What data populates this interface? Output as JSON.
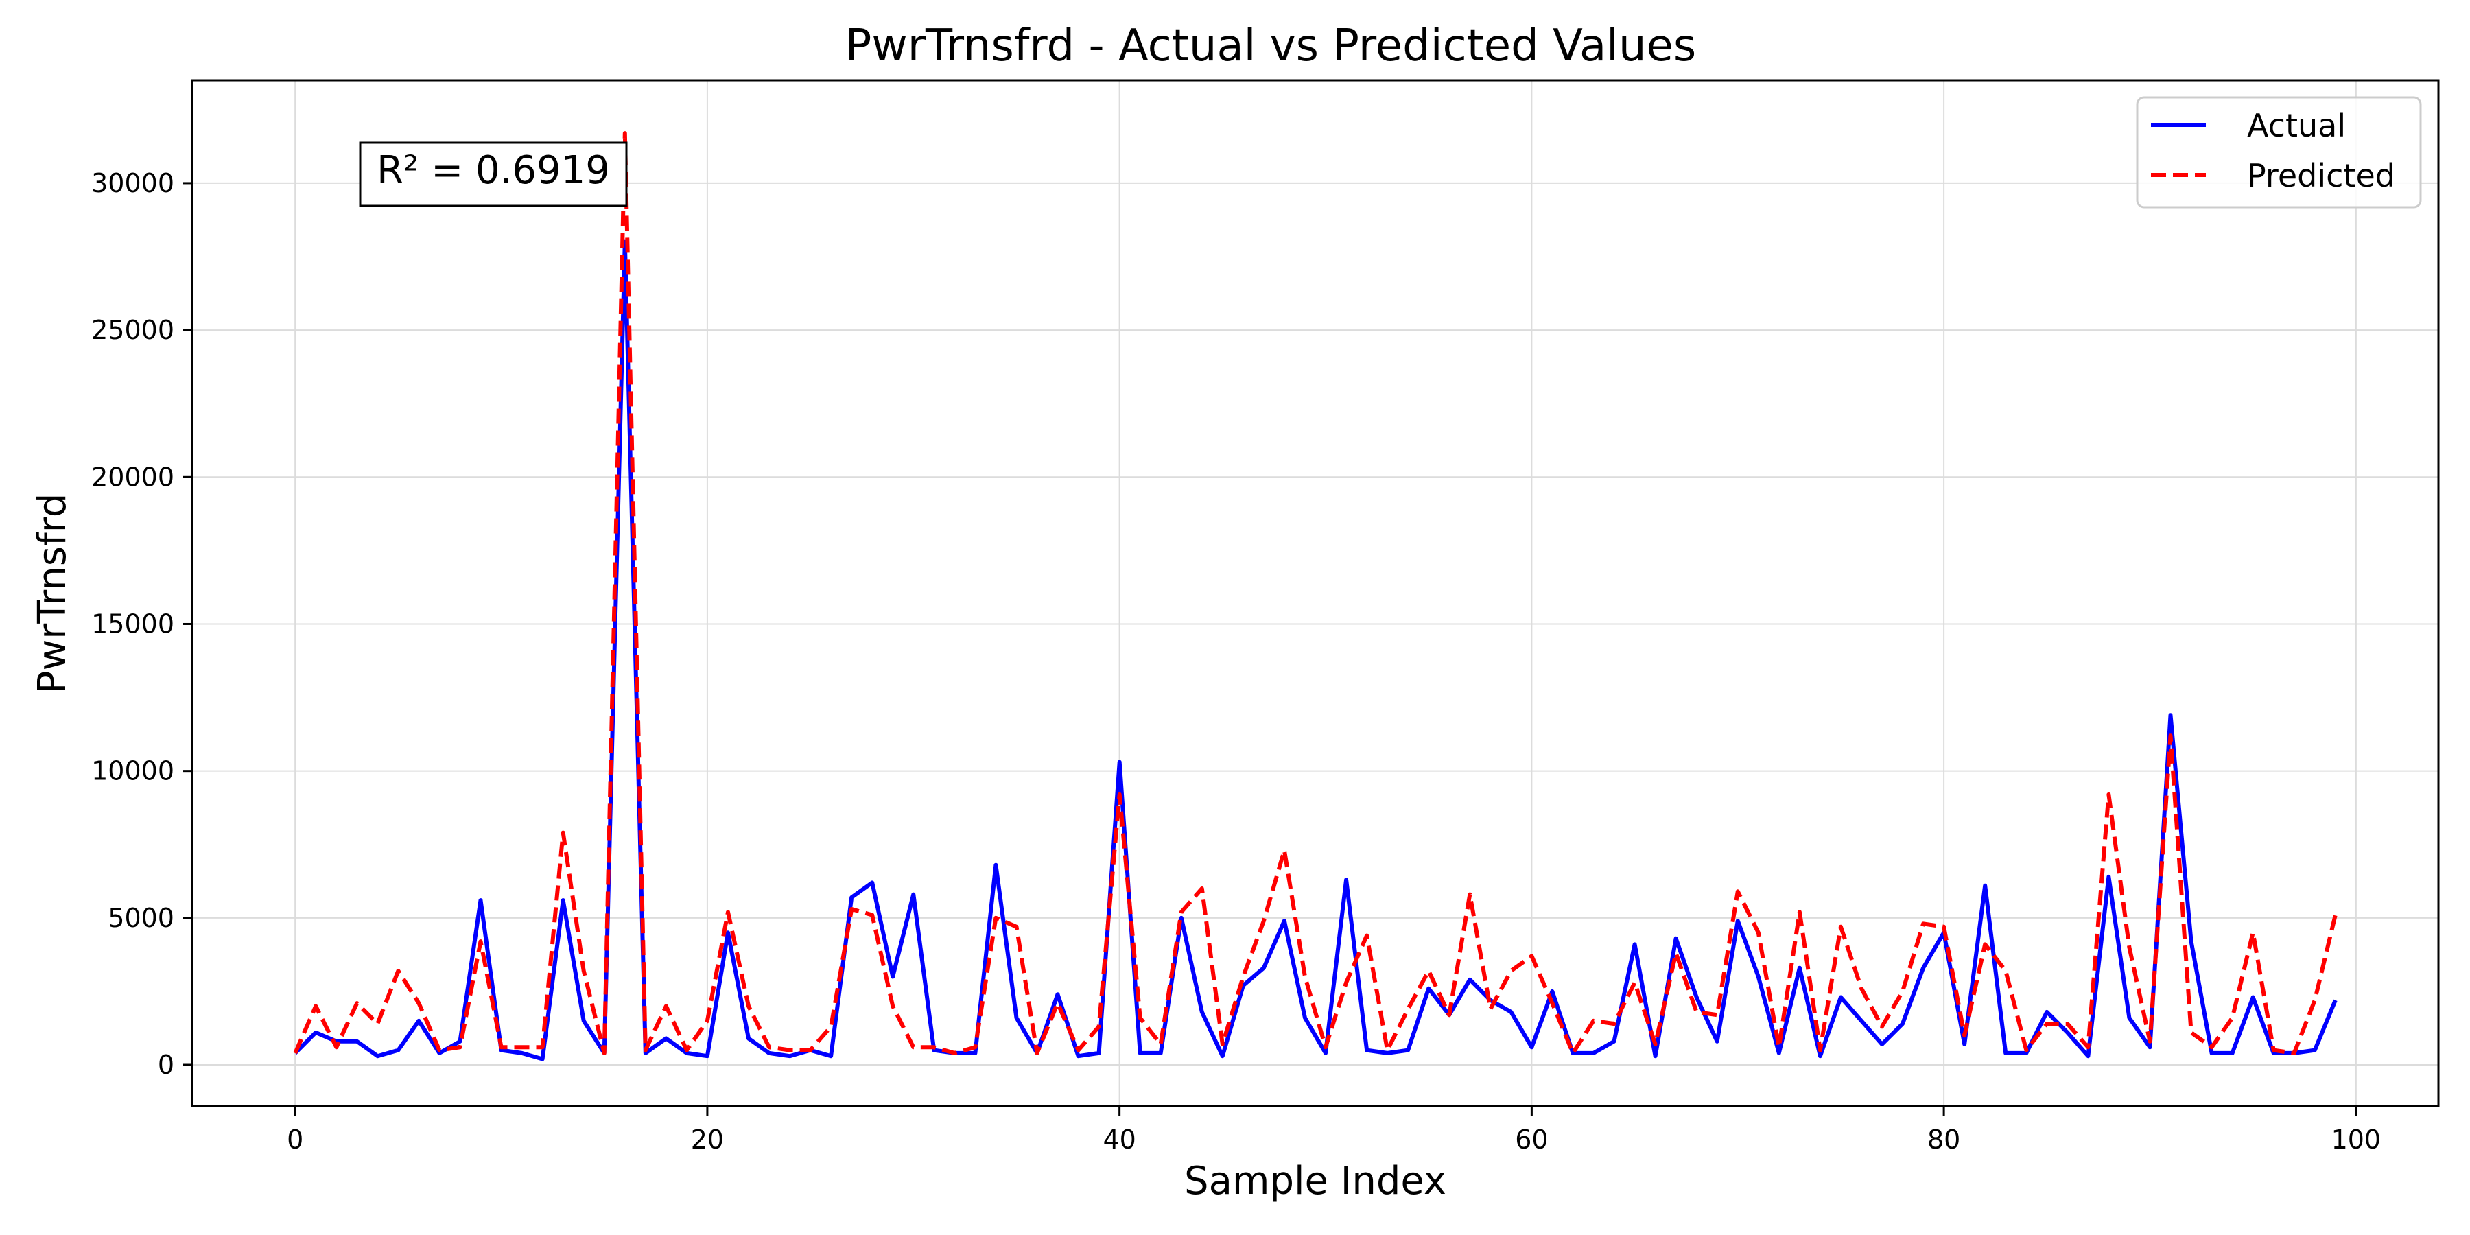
{
  "chart_data": {
    "type": "line",
    "title": "PwrTrnsfrd - Actual vs Predicted Values",
    "xlabel": "Sample Index",
    "ylabel": "PwrTrnsfrd",
    "xlim": [
      -5,
      104
    ],
    "ylim": [
      -1400,
      33500
    ],
    "xticks": [
      0,
      20,
      40,
      60,
      80,
      100
    ],
    "yticks": [
      0,
      5000,
      10000,
      15000,
      20000,
      25000,
      30000
    ],
    "grid": true,
    "legend_position": "top-right",
    "annotation": "R² = 0.6919",
    "x": [
      0,
      1,
      2,
      3,
      4,
      5,
      6,
      7,
      8,
      9,
      10,
      11,
      12,
      13,
      14,
      15,
      16,
      17,
      18,
      19,
      20,
      21,
      22,
      23,
      24,
      25,
      26,
      27,
      28,
      29,
      30,
      31,
      32,
      33,
      34,
      35,
      36,
      37,
      38,
      39,
      40,
      41,
      42,
      43,
      44,
      45,
      46,
      47,
      48,
      49,
      50,
      51,
      52,
      53,
      54,
      55,
      56,
      57,
      58,
      59,
      60,
      61,
      62,
      63,
      64,
      65,
      66,
      67,
      68,
      69,
      70,
      71,
      72,
      73,
      74,
      75,
      76,
      77,
      78,
      79,
      80,
      81,
      82,
      83,
      84,
      85,
      86,
      87,
      88,
      89,
      90,
      91,
      92,
      93,
      94,
      95,
      96,
      97,
      98,
      99
    ],
    "series": [
      {
        "name": "Actual",
        "color": "#0000ff",
        "style": "solid",
        "values": [
          400,
          1100,
          800,
          800,
          300,
          500,
          1500,
          400,
          800,
          5600,
          500,
          400,
          200,
          5600,
          1500,
          400,
          28000,
          400,
          900,
          400,
          300,
          4500,
          900,
          400,
          300,
          500,
          300,
          5700,
          6200,
          3000,
          5800,
          500,
          400,
          400,
          6800,
          1600,
          400,
          2400,
          300,
          400,
          10300,
          400,
          400,
          5000,
          1800,
          300,
          2700,
          3300,
          4900,
          1600,
          400,
          6300,
          500,
          400,
          500,
          2600,
          1700,
          2900,
          2200,
          1800,
          600,
          2500,
          400,
          400,
          800,
          4100,
          300,
          4300,
          2300,
          800,
          4900,
          3000,
          400,
          3300,
          300,
          2300,
          1500,
          700,
          1400,
          3300,
          4500,
          700,
          6100,
          400,
          400,
          1800,
          1100,
          300,
          6400,
          1600,
          600,
          11900,
          4200,
          400,
          400,
          2300,
          400,
          400,
          500,
          2200
        ]
      },
      {
        "name": "Predicted",
        "color": "#ff0000",
        "style": "dashed",
        "values": [
          400,
          2000,
          600,
          2100,
          1400,
          3200,
          2100,
          500,
          600,
          4200,
          600,
          600,
          600,
          7900,
          3200,
          400,
          31700,
          500,
          2000,
          500,
          1500,
          5200,
          2000,
          600,
          500,
          500,
          1300,
          5300,
          5100,
          2000,
          600,
          600,
          400,
          600,
          5000,
          4700,
          400,
          2100,
          500,
          1300,
          9200,
          1600,
          700,
          5200,
          6000,
          700,
          3000,
          4900,
          7300,
          3000,
          600,
          2800,
          4400,
          500,
          1900,
          3200,
          1700,
          5800,
          1900,
          3200,
          3700,
          2100,
          400,
          1500,
          1400,
          2800,
          700,
          3800,
          1800,
          1700,
          5900,
          4500,
          600,
          5200,
          500,
          4700,
          2600,
          1300,
          2500,
          4800,
          4700,
          1000,
          4100,
          3200,
          500,
          1400,
          1400,
          600,
          9200,
          4000,
          800,
          11200,
          1100,
          600,
          1600,
          4500,
          500,
          400,
          2200,
          5100
        ]
      }
    ]
  }
}
